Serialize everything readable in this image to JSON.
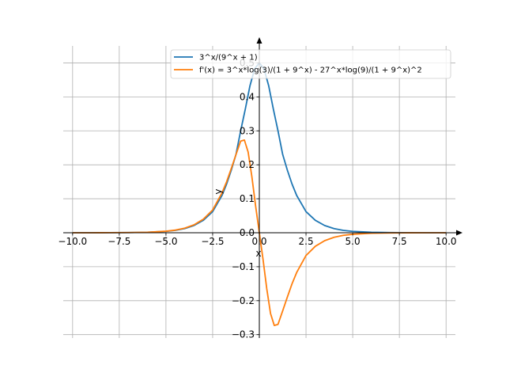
{
  "chart_data": {
    "type": "line",
    "xlabel": "x",
    "ylabel": "y",
    "xlim": [
      -10.5,
      10.5
    ],
    "ylim": [
      -0.31,
      0.55
    ],
    "grid": true,
    "legend_position": "top-right",
    "xticks": [
      -10.0,
      -7.5,
      -5.0,
      -2.5,
      0.0,
      2.5,
      5.0,
      7.5,
      10.0
    ],
    "xtick_labels": [
      "−10.0",
      "−7.5",
      "−5.0",
      "−2.5",
      "0.0",
      "2.5",
      "5.0",
      "7.5",
      "10.0"
    ],
    "yticks": [
      -0.3,
      -0.2,
      -0.1,
      0.0,
      0.1,
      0.2,
      0.3,
      0.4,
      0.5
    ],
    "ytick_labels": [
      "−0.3",
      "−0.2",
      "−0.1",
      "0.0",
      "0.1",
      "0.2",
      "0.3",
      "0.4",
      "0.5"
    ],
    "series": [
      {
        "name": "3^x/(9^x + 1)",
        "color": "#1f77b4",
        "x": [
          -10,
          -9,
          -8,
          -7,
          -6,
          -5,
          -4.5,
          -4,
          -3.5,
          -3,
          -2.5,
          -2,
          -1.75,
          -1.5,
          -1.25,
          -1,
          -0.75,
          -0.5,
          -0.25,
          0,
          0.25,
          0.5,
          0.75,
          1,
          1.25,
          1.5,
          1.75,
          2,
          2.5,
          3,
          3.5,
          4,
          4.5,
          5,
          6,
          7,
          8,
          9,
          10
        ],
        "y": [
          0.0,
          0.0,
          0.0002,
          0.0005,
          0.0014,
          0.0041,
          0.007,
          0.0123,
          0.0213,
          0.0366,
          0.0621,
          0.1098,
          0.1436,
          0.1844,
          0.2306,
          0.3,
          0.3644,
          0.433,
          0.4826,
          0.5,
          0.4826,
          0.433,
          0.3644,
          0.3,
          0.2306,
          0.1844,
          0.1436,
          0.1098,
          0.0621,
          0.0366,
          0.0213,
          0.0123,
          0.007,
          0.0041,
          0.0014,
          0.0005,
          0.0002,
          0.0,
          0.0
        ]
      },
      {
        "name": "f'(x) = 3^x*log(3)/(1 + 9^x) - 27^x*log(9)/(1 + 9^x)^2",
        "color": "#ff7f0e",
        "x": [
          -10,
          -9,
          -8,
          -7,
          -6,
          -5,
          -4.5,
          -4,
          -3.5,
          -3,
          -2.5,
          -2,
          -1.75,
          -1.5,
          -1.25,
          -1,
          -0.8,
          -0.6,
          -0.4,
          -0.2,
          0,
          0.2,
          0.4,
          0.6,
          0.8,
          1,
          1.25,
          1.5,
          1.75,
          2,
          2.5,
          3,
          3.5,
          4,
          4.5,
          5,
          6,
          7,
          8,
          9,
          10
        ],
        "y": [
          0.0,
          0.0,
          0.0002,
          0.0005,
          0.0015,
          0.0045,
          0.0077,
          0.0135,
          0.0233,
          0.0398,
          0.067,
          0.1171,
          0.1505,
          0.1895,
          0.2301,
          0.2697,
          0.2729,
          0.2377,
          0.1655,
          0.0791,
          0.0,
          -0.0791,
          -0.1655,
          -0.2377,
          -0.2729,
          -0.2697,
          -0.2301,
          -0.1895,
          -0.1505,
          -0.1171,
          -0.067,
          -0.0398,
          -0.0233,
          -0.0135,
          -0.0077,
          -0.0045,
          -0.0015,
          -0.0005,
          -0.0002,
          0.0,
          0.0
        ]
      }
    ]
  }
}
